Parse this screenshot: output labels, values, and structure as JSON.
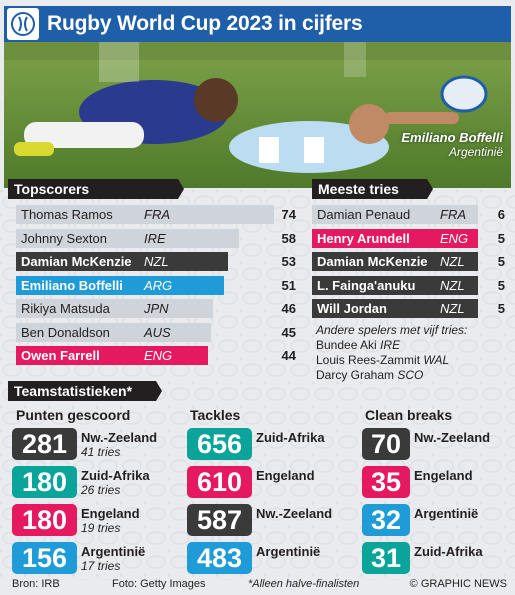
{
  "header": {
    "title": "Rugby World Cup 2023 in cijfers"
  },
  "photo": {
    "caption_name": "Emiliano Boffelli",
    "caption_country": "Argentinië"
  },
  "topscorers": {
    "title": "Topscorers",
    "rows": [
      {
        "name": "Thomas Ramos",
        "country": "FRA",
        "value": "74",
        "points": 74,
        "highlight": false
      },
      {
        "name": "Johnny Sexton",
        "country": "IRE",
        "value": "58",
        "points": 58,
        "highlight": false
      },
      {
        "name": "Damian McKenzie",
        "country": "NZL",
        "value": "53",
        "points": 53,
        "highlight": true,
        "color": "#3a3a3a"
      },
      {
        "name": "Emiliano Boffelli",
        "country": "ARG",
        "value": "51",
        "points": 51,
        "highlight": true,
        "color": "#1f9bd7"
      },
      {
        "name": "Rikiya Matsuda",
        "country": "JPN",
        "value": "46",
        "points": 46,
        "highlight": false
      },
      {
        "name": "Ben Donaldson",
        "country": "AUS",
        "value": "45",
        "points": 45,
        "highlight": false
      },
      {
        "name": "Owen Farrell",
        "country": "ENG",
        "value": "44",
        "points": 44,
        "highlight": true,
        "color": "#e5195f"
      }
    ]
  },
  "tries": {
    "title": "Meeste tries",
    "rows": [
      {
        "name": "Damian Penaud",
        "country": "FRA",
        "value": "6",
        "tries": 6,
        "highlight": false
      },
      {
        "name": "Henry Arundell",
        "country": "ENG",
        "value": "5",
        "tries": 5,
        "highlight": true,
        "color": "#e5195f"
      },
      {
        "name": "Damian McKenzie",
        "country": "NZL",
        "value": "5",
        "tries": 5,
        "highlight": true,
        "color": "#3a3a3a"
      },
      {
        "name": "L. Fainga'anuku",
        "country": "NZL",
        "value": "5",
        "tries": 5,
        "highlight": true,
        "color": "#3a3a3a"
      },
      {
        "name": "Will Jordan",
        "country": "NZL",
        "value": "5",
        "tries": 5,
        "highlight": true,
        "color": "#3a3a3a"
      }
    ],
    "others_intro": "Andere spelers met vijf tries:",
    "others": [
      {
        "name": "Bundee Aki",
        "country": "IRE"
      },
      {
        "name": "Louis Rees-Zammit",
        "country": "WAL"
      },
      {
        "name": "Darcy Graham",
        "country": "SCO"
      }
    ]
  },
  "team_stats": {
    "title": "Teamstatistieken*",
    "columns": [
      {
        "title": "Punten gescoord",
        "items": [
          {
            "value": "281",
            "team": "Nw.-Zeeland",
            "sub": "41 tries",
            "color": "#3a3a3a"
          },
          {
            "value": "180",
            "team": "Zuid-Afrika",
            "sub": "26 tries",
            "color": "#0aa49a"
          },
          {
            "value": "180",
            "team": "Engeland",
            "sub": "19 tries",
            "color": "#e5195f"
          },
          {
            "value": "156",
            "team": "Argentinië",
            "sub": "17 tries",
            "color": "#1f9bd7"
          }
        ]
      },
      {
        "title": "Tackles",
        "items": [
          {
            "value": "656",
            "team": "Zuid-Afrika",
            "sub": "",
            "color": "#0aa49a"
          },
          {
            "value": "610",
            "team": "Engeland",
            "sub": "",
            "color": "#e5195f"
          },
          {
            "value": "587",
            "team": "Nw.-Zeeland",
            "sub": "",
            "color": "#3a3a3a"
          },
          {
            "value": "483",
            "team": "Argentinië",
            "sub": "",
            "color": "#1f9bd7"
          }
        ]
      },
      {
        "title": "Clean breaks",
        "items": [
          {
            "value": "70",
            "team": "Nw.-Zeeland",
            "sub": "",
            "color": "#3a3a3a"
          },
          {
            "value": "35",
            "team": "Engeland",
            "sub": "",
            "color": "#e5195f"
          },
          {
            "value": "32",
            "team": "Argentinië",
            "sub": "",
            "color": "#1f9bd7"
          },
          {
            "value": "31",
            "team": "Zuid-Afrika",
            "sub": "",
            "color": "#0aa49a"
          }
        ]
      }
    ]
  },
  "footer": {
    "source": "Bron: IRB",
    "photo_credit": "Foto: Getty Images",
    "note": "*Alleen halve-finalisten",
    "copyright": "© GRAPHIC NEWS"
  },
  "colors": {
    "header_blue": "#1f5ea8",
    "bar_grey": "#cfd3da",
    "dark": "#231f20"
  }
}
